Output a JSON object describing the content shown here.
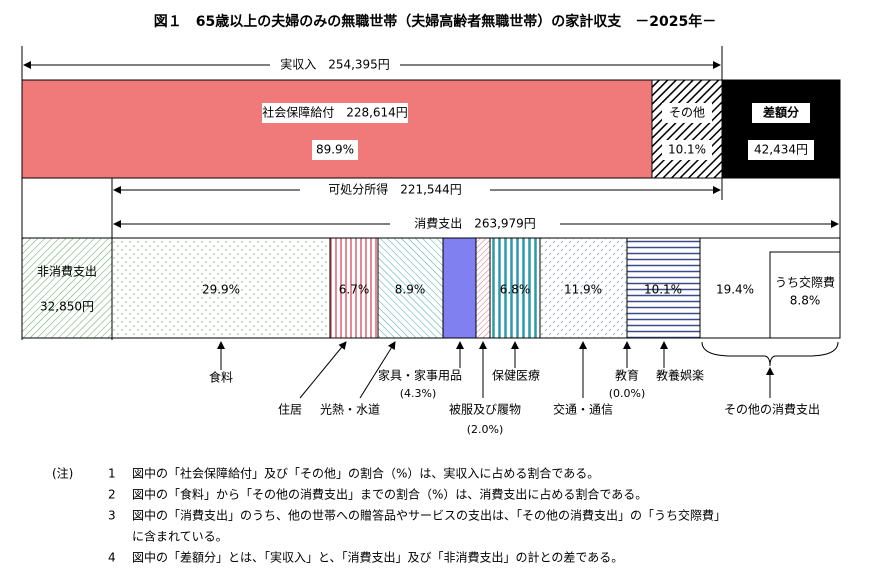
{
  "title": "図１　65歳以上の夫婦のみの無職世帯（夫婦高齢者無職世帯）の家計収支　－2025年－",
  "income": {
    "label": "実収入　254,395円",
    "social": "社会保障給付　228,614円",
    "social_pct": "89.9%",
    "other": "その他",
    "other_pct": "10.1%",
    "surplus": "差額分",
    "surplus_amount": "42,434円"
  },
  "disposable": "可処分所得　221,544円",
  "consumption": "消費支出　263,979円",
  "nonconsumption": {
    "label": "非消費支出",
    "amount": "32,850円"
  },
  "segments": [
    {
      "name": "食料",
      "pct": "29.9%"
    },
    {
      "name": "住居",
      "pct": "6.7%"
    },
    {
      "name": "光熱・水道",
      "pct": "8.9%"
    },
    {
      "name": "家具・家事用品",
      "sub": "(4.3%)"
    },
    {
      "name": "被服及び履物",
      "sub": "(2.0%)"
    },
    {
      "name": "保健医療",
      "pct": "6.8%"
    },
    {
      "name": "交通・通信",
      "pct": "11.9%"
    },
    {
      "name": "教育",
      "sub": "(0.0%)"
    },
    {
      "name": "教養娯楽",
      "pct": "10.1%"
    },
    {
      "name": "その他の消費支出",
      "pct": "19.4%",
      "inner": "うち交際費",
      "inner_pct": "8.8%"
    }
  ],
  "notes": {
    "head": "(注)",
    "items": [
      {
        "no": "1",
        "text": "図中の「社会保障給付」及び「その他」の割合（%）は、実収入に占める割合である。"
      },
      {
        "no": "2",
        "text": "図中の「食料」から「その他の消費支出」までの割合（%）は、消費支出に占める割合である。"
      },
      {
        "no": "3",
        "text": "図中の「消費支出」のうち、他の世帯への贈答品やサービスの支出は、「その他の消費支出」の「うち交際費」"
      },
      {
        "no": "",
        "text": "に含まれている。"
      },
      {
        "no": "4",
        "text": "図中の「差額分」とは、「実収入」と、「消費支出」及び「非消費支出」の計との差である。"
      }
    ]
  }
}
